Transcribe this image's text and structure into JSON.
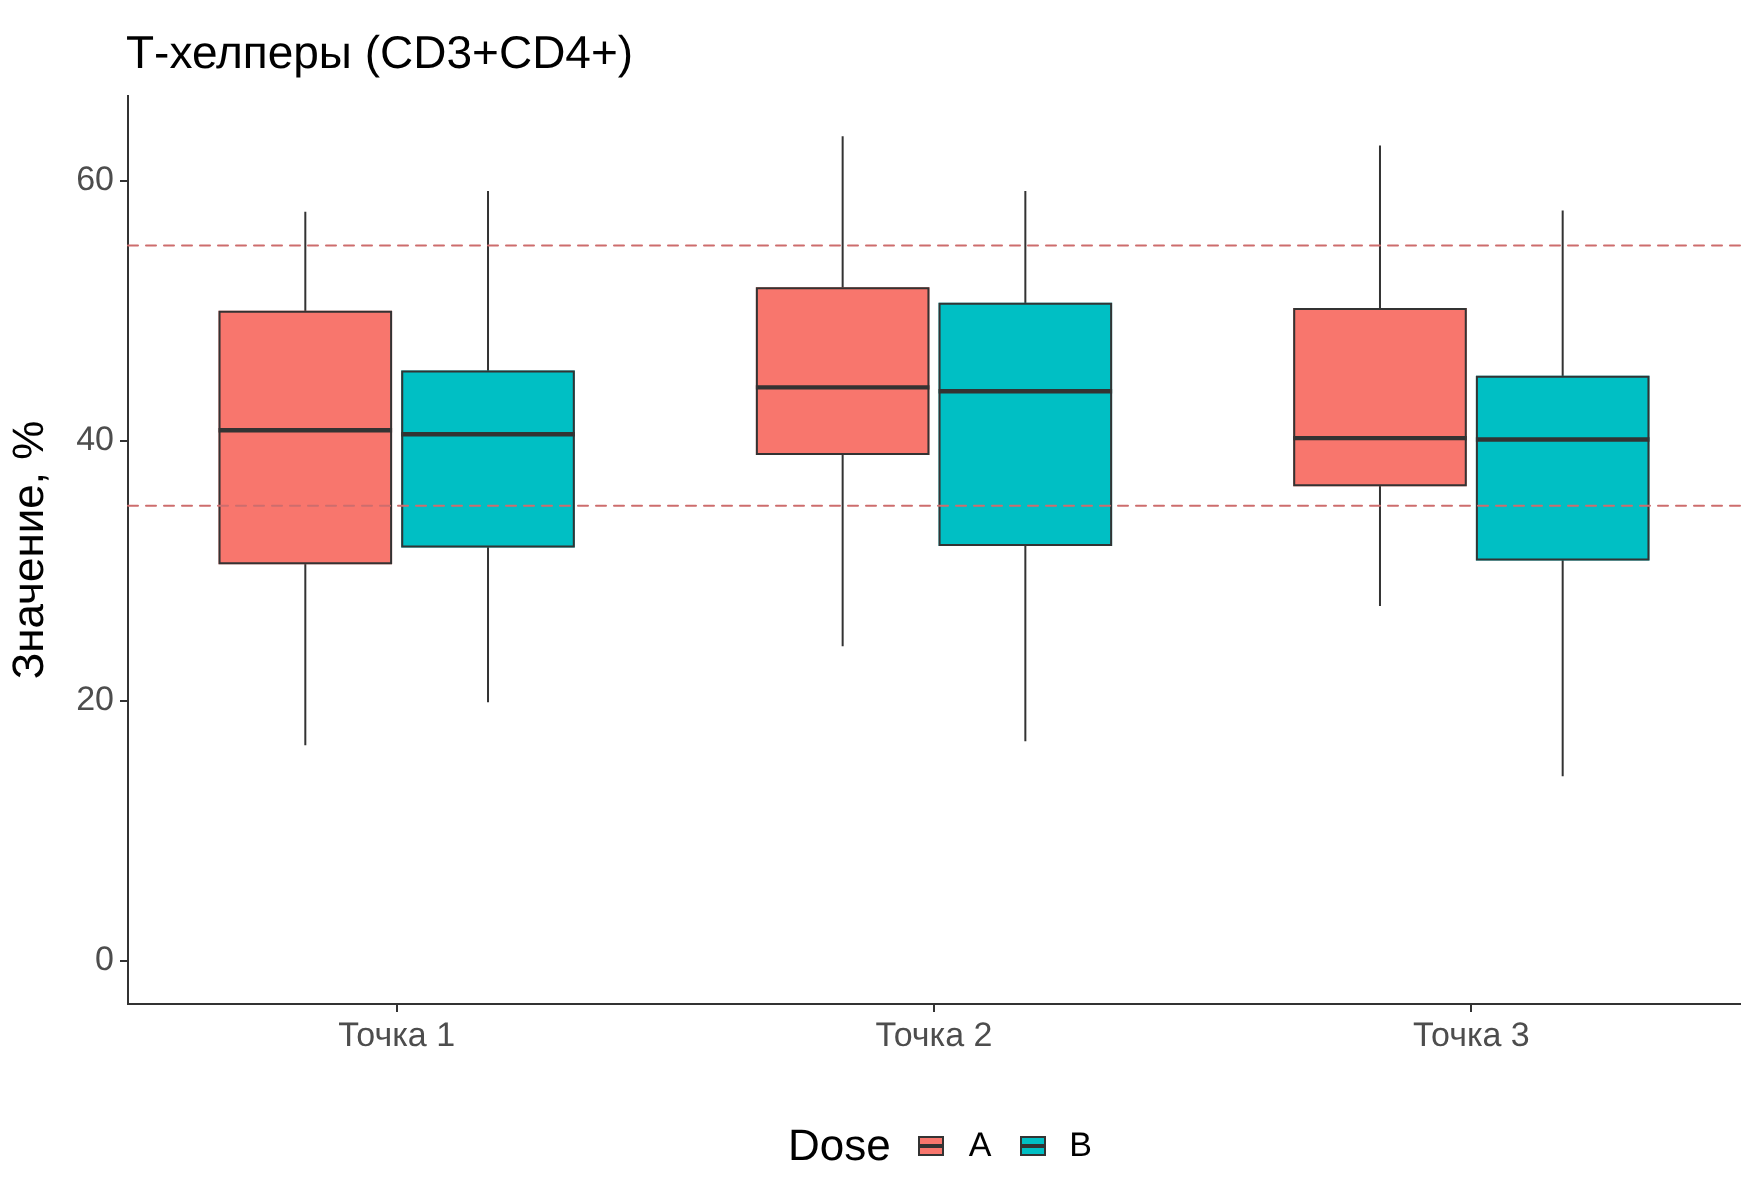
{
  "chart_data": {
    "type": "box",
    "title": "Т-хелперы (CD3+CD4+)",
    "ylabel": "Значение, %",
    "legend_title": "Dose",
    "legend": "bottom",
    "grid": false,
    "categories": [
      "Точка 1",
      "Точка 2",
      "Точка 3"
    ],
    "series": [
      {
        "name": "A",
        "color": "#f8766d",
        "boxes": [
          {
            "low": 16.6,
            "q1": 30.5,
            "median": 40.8,
            "q3": 50,
            "high": 57.6
          },
          {
            "low": 24.2,
            "q1": 38.9,
            "median": 44.1,
            "q3": 51.8,
            "high": 63.4
          },
          {
            "low": 27.3,
            "q1": 36.5,
            "median": 40.2,
            "q3": 50.2,
            "high": 62.7
          }
        ]
      },
      {
        "name": "B",
        "color": "#00bfc4",
        "boxes": [
          {
            "low": 19.9,
            "q1": 31.8,
            "median": 40.5,
            "q3": 45.4,
            "high": 59.2
          },
          {
            "low": 16.9,
            "q1": 31.9,
            "median": 43.8,
            "q3": 50.6,
            "high": 59.2
          },
          {
            "low": 14.2,
            "q1": 30.8,
            "median": 40.1,
            "q3": 45,
            "high": 57.7
          }
        ]
      }
    ],
    "ylim": [
      -3.3,
      66.5
    ],
    "yticks": [
      0,
      20,
      40,
      60
    ],
    "ref_lines": [
      {
        "axis": "y",
        "value": 55,
        "color": "#cd6d6d",
        "line_style": "dashed"
      },
      {
        "axis": "y",
        "value": 35,
        "color": "#cd6d6d",
        "line_style": "dashed"
      }
    ]
  }
}
